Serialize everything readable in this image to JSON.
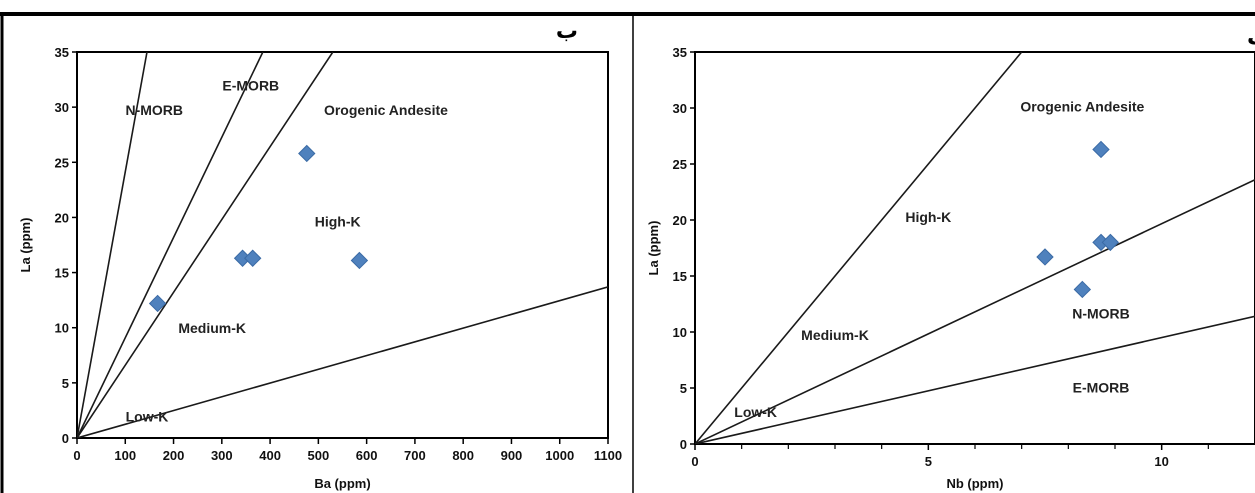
{
  "chart_data": [
    {
      "type": "scatter",
      "panel_label": "ب",
      "xlabel": "Ba (ppm)",
      "ylabel": "La (ppm)",
      "xlim": [
        0,
        1100
      ],
      "ylim": [
        0,
        35
      ],
      "xticks": [
        0,
        100,
        200,
        300,
        400,
        500,
        600,
        700,
        800,
        900,
        1000,
        1100
      ],
      "yticks": [
        0,
        5,
        10,
        15,
        20,
        25,
        30,
        35
      ],
      "boundary_lines": [
        {
          "from": [
            0,
            0
          ],
          "to": [
            145,
            35
          ]
        },
        {
          "from": [
            0,
            0
          ],
          "to": [
            385,
            35
          ]
        },
        {
          "from": [
            0,
            0
          ],
          "to": [
            530,
            35
          ]
        },
        {
          "from": [
            0,
            0
          ],
          "to": [
            1100,
            13.7
          ]
        }
      ],
      "fields": [
        {
          "label": "N-MORB",
          "x": 160,
          "y": 29.3
        },
        {
          "label": "E-MORB",
          "x": 360,
          "y": 31.5
        },
        {
          "label": "Orogenic Andesite",
          "x": 640,
          "y": 29.3
        },
        {
          "label": "High-K",
          "x": 540,
          "y": 19.2
        },
        {
          "label": "Medium-K",
          "x": 280,
          "y": 9.5
        },
        {
          "label": "Low-K",
          "x": 145,
          "y": 1.5
        }
      ],
      "points": [
        {
          "x": 167,
          "y": 12.2
        },
        {
          "x": 343,
          "y": 16.3
        },
        {
          "x": 364,
          "y": 16.3
        },
        {
          "x": 476,
          "y": 25.8
        },
        {
          "x": 585,
          "y": 16.1
        }
      ],
      "marker_color": "#4f81bd"
    },
    {
      "type": "scatter",
      "panel_label": "الف",
      "xlabel": "Nb (ppm)",
      "ylabel": "La (ppm)",
      "xlim": [
        0,
        12
      ],
      "ylim": [
        0,
        35
      ],
      "xticks": [
        0,
        5,
        10
      ],
      "xticks_minor": [
        1,
        2,
        3,
        4,
        6,
        7,
        8,
        9,
        11
      ],
      "yticks": [
        0,
        5,
        10,
        15,
        20,
        25,
        30,
        35
      ],
      "boundary_lines": [
        {
          "from": [
            0,
            0
          ],
          "to": [
            7.0,
            35
          ]
        },
        {
          "from": [
            0,
            0
          ],
          "to": [
            12,
            23.6
          ]
        },
        {
          "from": [
            0,
            0
          ],
          "to": [
            12,
            11.4
          ]
        }
      ],
      "fields": [
        {
          "label": "Orogenic Andesite",
          "x": 8.3,
          "y": 29.7
        },
        {
          "label": "High-K",
          "x": 5.0,
          "y": 19.8
        },
        {
          "label": "Medium-K",
          "x": 3.0,
          "y": 9.3
        },
        {
          "label": "N-MORB",
          "x": 8.7,
          "y": 11.2
        },
        {
          "label": "E-MORB",
          "x": 8.7,
          "y": 4.6
        },
        {
          "label": "Low-K",
          "x": 1.3,
          "y": 2.4
        }
      ],
      "points": [
        {
          "x": 8.7,
          "y": 26.3
        },
        {
          "x": 7.5,
          "y": 16.7
        },
        {
          "x": 8.7,
          "y": 18.0
        },
        {
          "x": 8.9,
          "y": 18.0
        },
        {
          "x": 8.3,
          "y": 13.8
        }
      ],
      "marker_color": "#4f81bd"
    }
  ]
}
